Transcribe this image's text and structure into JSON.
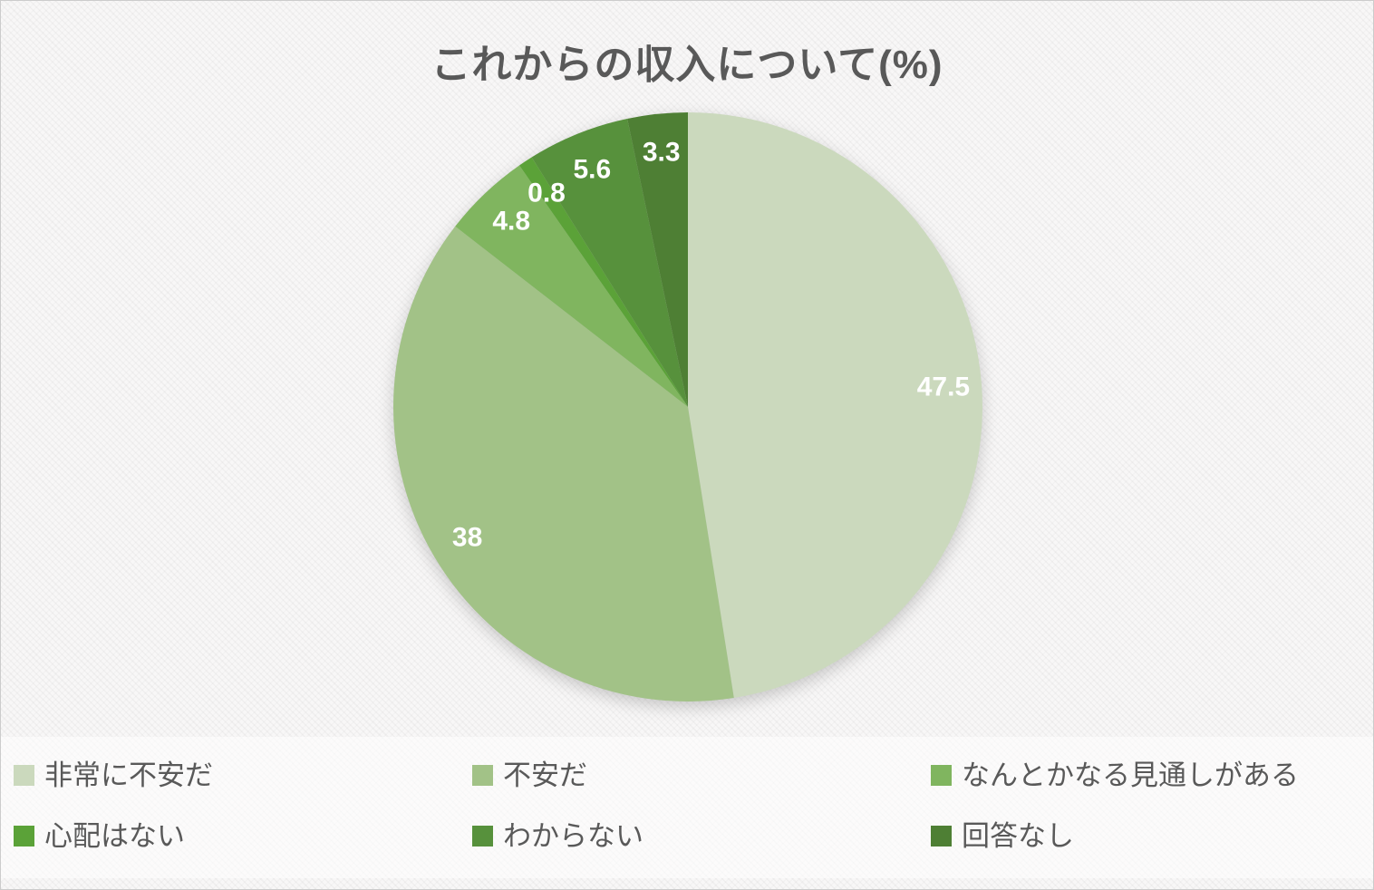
{
  "chart_data": {
    "type": "pie",
    "title": "これからの収入について(%)",
    "start_angle_deg": 0,
    "direction": "clockwise",
    "legend_position": "bottom",
    "value_label_color": "#ffffff",
    "title_color": "#595959",
    "legend_text_color": "#595959",
    "slices": [
      {
        "label": "非常に不安だ",
        "value": 47.5,
        "display": "47.5",
        "color": "#cbd9bd"
      },
      {
        "label": "不安だ",
        "value": 38,
        "display": "38",
        "color": "#a2c287"
      },
      {
        "label": "なんとかなる見通しがある",
        "value": 4.8,
        "display": "4.8",
        "color": "#80b55f"
      },
      {
        "label": "心配はない",
        "value": 0.8,
        "display": "0.8",
        "color": "#5ba238"
      },
      {
        "label": "わからない",
        "value": 5.6,
        "display": "5.6",
        "color": "#57913c"
      },
      {
        "label": "回答なし",
        "value": 3.3,
        "display": "3.3",
        "color": "#4e7f34"
      }
    ]
  }
}
